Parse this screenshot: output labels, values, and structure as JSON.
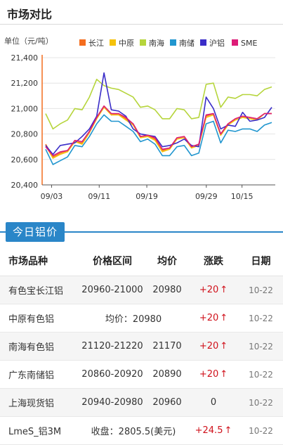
{
  "header": {
    "title": "市场对比"
  },
  "chart_data": {
    "type": "line",
    "ylabel": "单位（元/吨）",
    "ylim": [
      20400,
      21400
    ],
    "yticks": [
      20400,
      20600,
      20800,
      21000,
      21200,
      21400
    ],
    "ytick_labels": [
      "20,400",
      "20,600",
      "20,800",
      "21,000",
      "21,200",
      "21,400"
    ],
    "x_start": "09/02",
    "x_days": 38,
    "xtick_labels": [
      {
        "label": "09/03",
        "day": 1
      },
      {
        "label": "09/11",
        "day": 9
      },
      {
        "label": "09/19",
        "day": 17
      },
      {
        "label": "09/29",
        "day": 27
      },
      {
        "label": "10/15",
        "day": 33
      }
    ],
    "series": [
      {
        "name": "长江",
        "color": "#f46d1e",
        "values": [
          20720,
          20620,
          20650,
          20670,
          20740,
          20730,
          20820,
          20930,
          21020,
          20950,
          20960,
          20920,
          20880,
          20780,
          20790,
          20760,
          20670,
          20690,
          20770,
          20780,
          20700,
          20720,
          20940,
          20960,
          20800,
          20880,
          20920,
          20940,
          20930,
          20920,
          20960,
          20960
        ]
      },
      {
        "name": "中原",
        "color": "#f5c20b",
        "values": [
          20710,
          20610,
          20640,
          20660,
          20740,
          20720,
          20810,
          20920,
          21010,
          20950,
          20950,
          20910,
          20870,
          20770,
          20780,
          20750,
          20660,
          20680,
          20760,
          20770,
          20690,
          20710,
          20930,
          20950,
          20790,
          20870,
          20910,
          20930,
          20920,
          20910,
          20960,
          20960
        ]
      },
      {
        "name": "南海",
        "color": "#b6d53c",
        "values": [
          20960,
          20840,
          20880,
          20910,
          21000,
          20990,
          21090,
          21230,
          21180,
          21160,
          21150,
          21120,
          21090,
          21010,
          21020,
          20990,
          20920,
          20920,
          21000,
          20990,
          20920,
          20930,
          21190,
          21200,
          21010,
          21090,
          21080,
          21110,
          21110,
          21100,
          21150,
          21170
        ]
      },
      {
        "name": "南储",
        "color": "#2196cf",
        "values": [
          20680,
          20560,
          20590,
          20620,
          20710,
          20700,
          20780,
          20880,
          20950,
          20900,
          20900,
          20860,
          20820,
          20740,
          20760,
          20720,
          20630,
          20630,
          20700,
          20710,
          20630,
          20650,
          20880,
          20900,
          20730,
          20830,
          20820,
          20840,
          20840,
          20820,
          20870,
          20890
        ]
      },
      {
        "name": "沪铝",
        "color": "#3a2dc8",
        "values": [
          20710,
          20640,
          20710,
          20720,
          20730,
          20780,
          20840,
          20940,
          21280,
          20990,
          20980,
          20940,
          20840,
          20800,
          20790,
          20780,
          20700,
          20710,
          20730,
          20760,
          20710,
          20700,
          21090,
          21000,
          20840,
          20870,
          20860,
          20970,
          20900,
          20910,
          20930,
          21010
        ]
      },
      {
        "name": "SME",
        "color": "#dd1c77",
        "values": [
          20700,
          20630,
          20660,
          20670,
          20750,
          20740,
          20820,
          20930,
          21020,
          20960,
          20960,
          20930,
          20880,
          20780,
          20790,
          20770,
          20680,
          20690,
          20770,
          20780,
          20700,
          20720,
          20950,
          20960,
          20800,
          20880,
          20920,
          20940,
          20930,
          20920,
          20960,
          20960
        ]
      }
    ]
  },
  "today": {
    "label": "今日铝价"
  },
  "table": {
    "headers": [
      "市场品种",
      "价格区间",
      "均价",
      "涨跌",
      "日期"
    ],
    "rows": [
      {
        "name": "有色宝长江铝",
        "range": "20960-21000",
        "avg": "20980",
        "change": "+20",
        "rise": true,
        "date": "10-22"
      },
      {
        "name": "中原有色铝",
        "merged": "均价：20980",
        "change": "+20",
        "rise": true,
        "date": "10-22"
      },
      {
        "name": "南海有色铝",
        "range": "21120-21220",
        "avg": "21170",
        "change": "+20",
        "rise": true,
        "date": "10-22"
      },
      {
        "name": "广东南储铝",
        "range": "20860-20920",
        "avg": "20890",
        "change": "+20",
        "rise": true,
        "date": "10-22"
      },
      {
        "name": "上海现货铝",
        "range": "20940-20980",
        "avg": "20960",
        "change": "0",
        "rise": false,
        "date": "10-22"
      },
      {
        "name": "LmeS_铝3M",
        "merged": "收盘：2805.5(美元)",
        "change": "+24.5",
        "rise": true,
        "date": "10-22"
      }
    ]
  }
}
